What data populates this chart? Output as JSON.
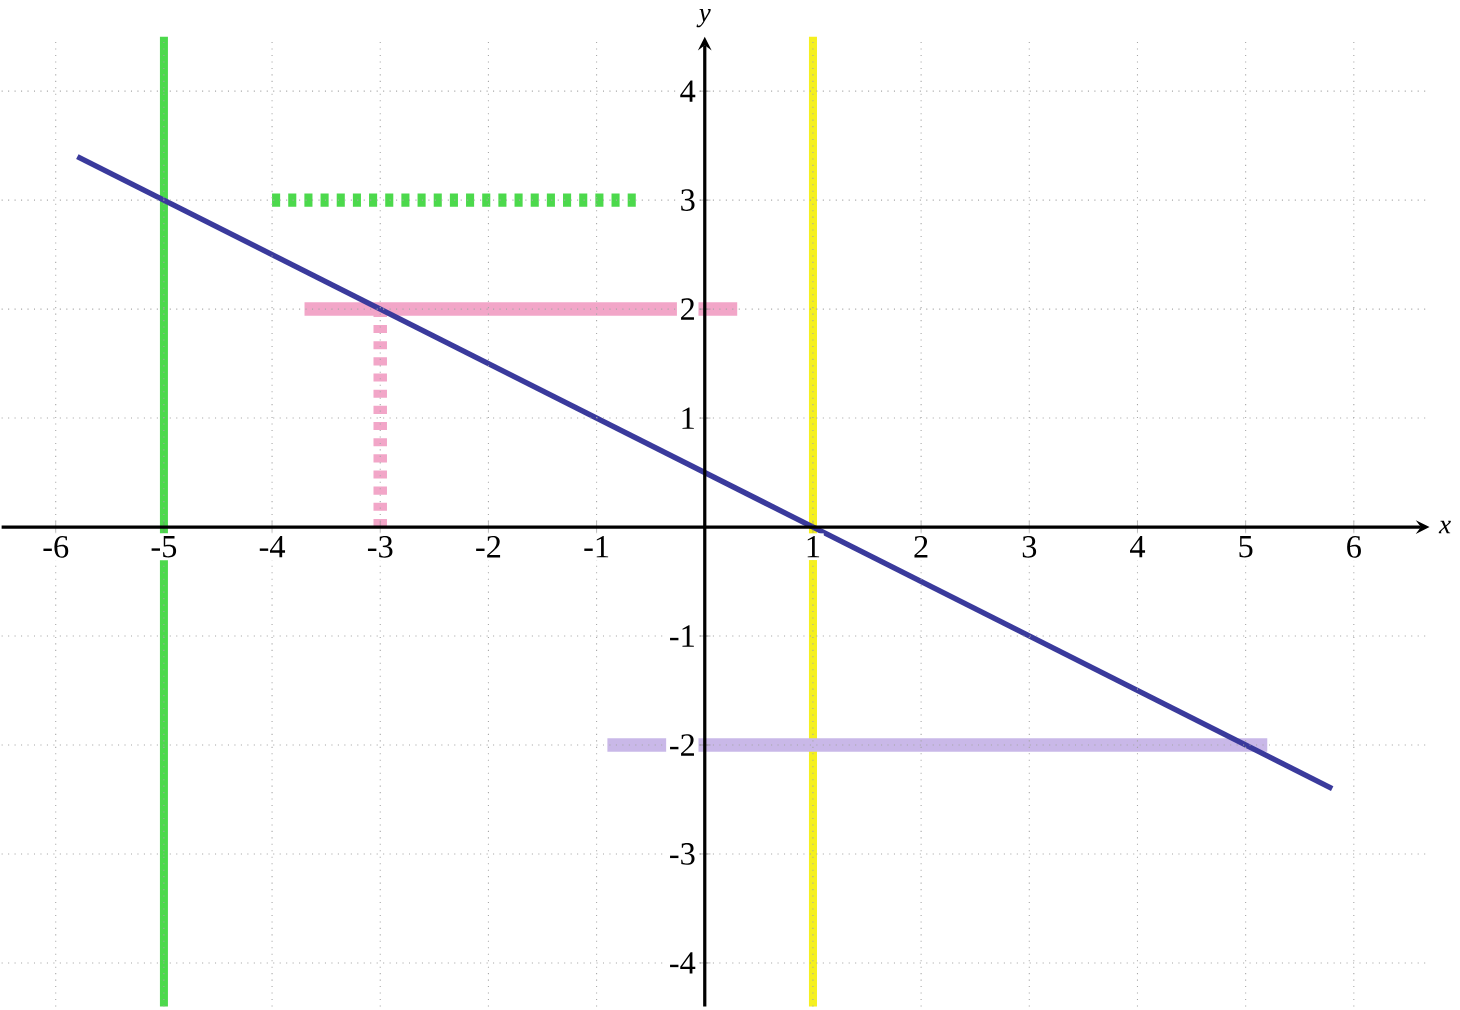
{
  "chart_data": {
    "type": "line",
    "xlabel": "x",
    "ylabel": "y",
    "xlim": [
      -6.5,
      6.7
    ],
    "ylim": [
      -4.4,
      4.5
    ],
    "xticks": [
      -6,
      -5,
      -4,
      -3,
      -2,
      -1,
      1,
      2,
      3,
      4,
      5,
      6
    ],
    "yticks": [
      -4,
      -3,
      -2,
      -1,
      1,
      2,
      3,
      4
    ],
    "grid": true,
    "series": [
      {
        "color": "#3a3a9c",
        "x": [
          -5.8,
          5.8
        ],
        "values": [
          3.4,
          -2.4
        ]
      },
      {
        "color": "#f2a6c8",
        "x": [
          -3.7,
          0.3
        ],
        "values": [
          2,
          2
        ]
      },
      {
        "color": "#f2a6c8",
        "x": [
          -3,
          -3
        ],
        "values": [
          0,
          2
        ],
        "line_style": "dashed"
      },
      {
        "color": "#c9b8e8",
        "x": [
          -0.9,
          5.2
        ],
        "values": [
          -2,
          -2
        ]
      },
      {
        "color": "#4cd94c",
        "x": [
          -4,
          -0.6
        ],
        "values": [
          3,
          3
        ],
        "line_style": "dashed"
      }
    ],
    "ref_lines": [
      {
        "axis": "x",
        "value": -5,
        "color": "#4cd94c"
      },
      {
        "axis": "x",
        "value": 1,
        "color": "#f5f020"
      }
    ]
  }
}
